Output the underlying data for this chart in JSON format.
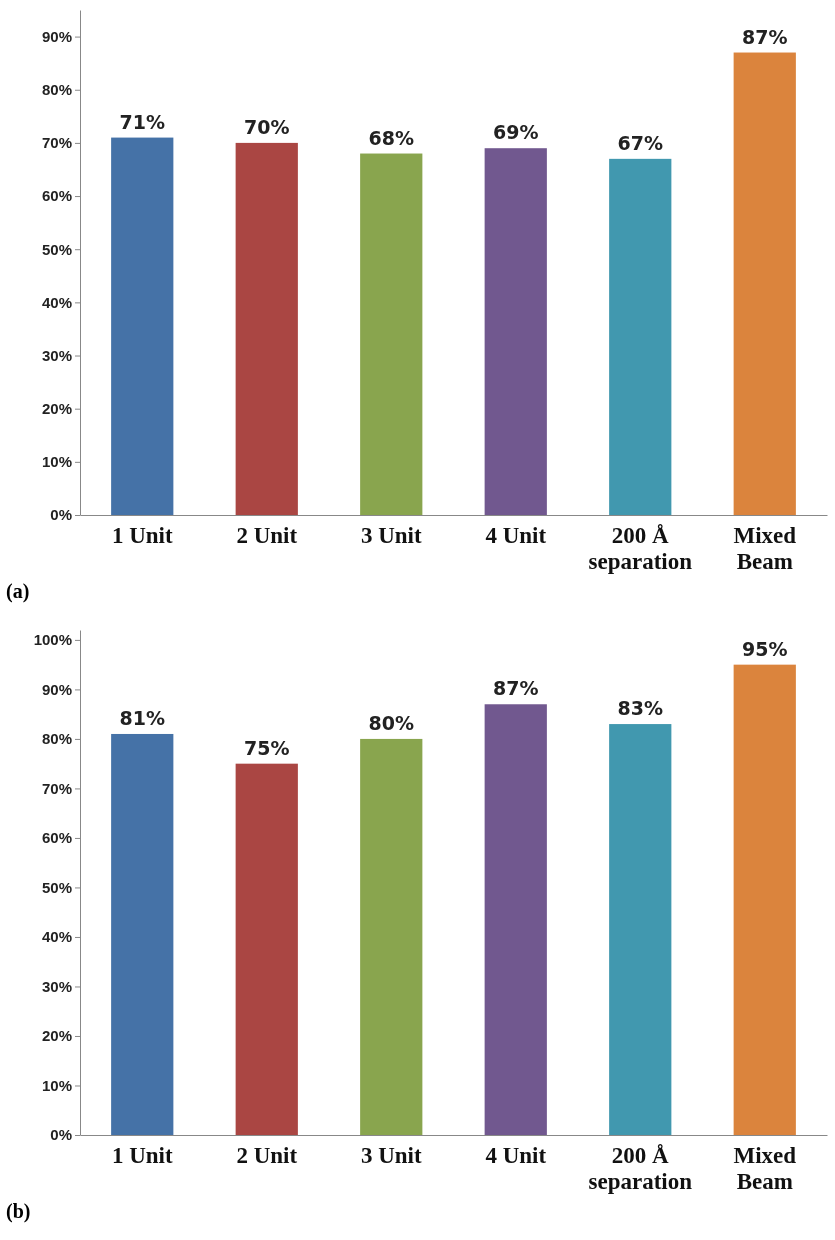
{
  "chart_data": [
    {
      "type": "bar",
      "categories": [
        "1 Unit",
        "2 Unit",
        "3 Unit",
        "4 Unit",
        "200 Å separation",
        "Mixed Beam"
      ],
      "values": [
        71,
        70,
        68,
        69,
        67,
        87
      ],
      "colors": [
        "#4572a7",
        "#aa4643",
        "#89a54e",
        "#71588f",
        "#4198af",
        "#db843d"
      ],
      "value_labels": [
        "71%",
        "70%",
        "68%",
        "69%",
        "67%",
        "87%"
      ],
      "ylim": [
        0,
        95
      ],
      "yticks": [
        {
          "value": 0,
          "label": "0%"
        },
        {
          "value": 10,
          "label": "10%"
        },
        {
          "value": 20,
          "label": "20%"
        },
        {
          "value": 30,
          "label": "30%"
        },
        {
          "value": 40,
          "label": "40%"
        },
        {
          "value": 50,
          "label": "50%"
        },
        {
          "value": 60,
          "label": "60%"
        },
        {
          "value": 70,
          "label": "70%"
        },
        {
          "value": 80,
          "label": "80%"
        },
        {
          "value": 90,
          "label": "90%"
        }
      ],
      "annotations": [
        "(a)"
      ]
    },
    {
      "type": "bar",
      "categories": [
        "1 Unit",
        "2 Unit",
        "3 Unit",
        "4 Unit",
        "200 Å separation",
        "Mixed Beam"
      ],
      "values": [
        81,
        75,
        80,
        87,
        83,
        95
      ],
      "colors": [
        "#4572a7",
        "#aa4643",
        "#89a54e",
        "#71588f",
        "#4198af",
        "#db843d"
      ],
      "value_labels": [
        "81%",
        "75%",
        "80%",
        "87%",
        "83%",
        "95%"
      ],
      "ylim": [
        0,
        102
      ],
      "yticks": [
        {
          "value": 0,
          "label": "0%"
        },
        {
          "value": 10,
          "label": "10%"
        },
        {
          "value": 20,
          "label": "20%"
        },
        {
          "value": 30,
          "label": "30%"
        },
        {
          "value": 40,
          "label": "40%"
        },
        {
          "value": 50,
          "label": "50%"
        },
        {
          "value": 60,
          "label": "60%"
        },
        {
          "value": 70,
          "label": "70%"
        },
        {
          "value": 80,
          "label": "80%"
        },
        {
          "value": 90,
          "label": "90%"
        },
        {
          "value": 100,
          "label": "100%"
        }
      ],
      "annotations": [
        "(b)"
      ]
    }
  ]
}
